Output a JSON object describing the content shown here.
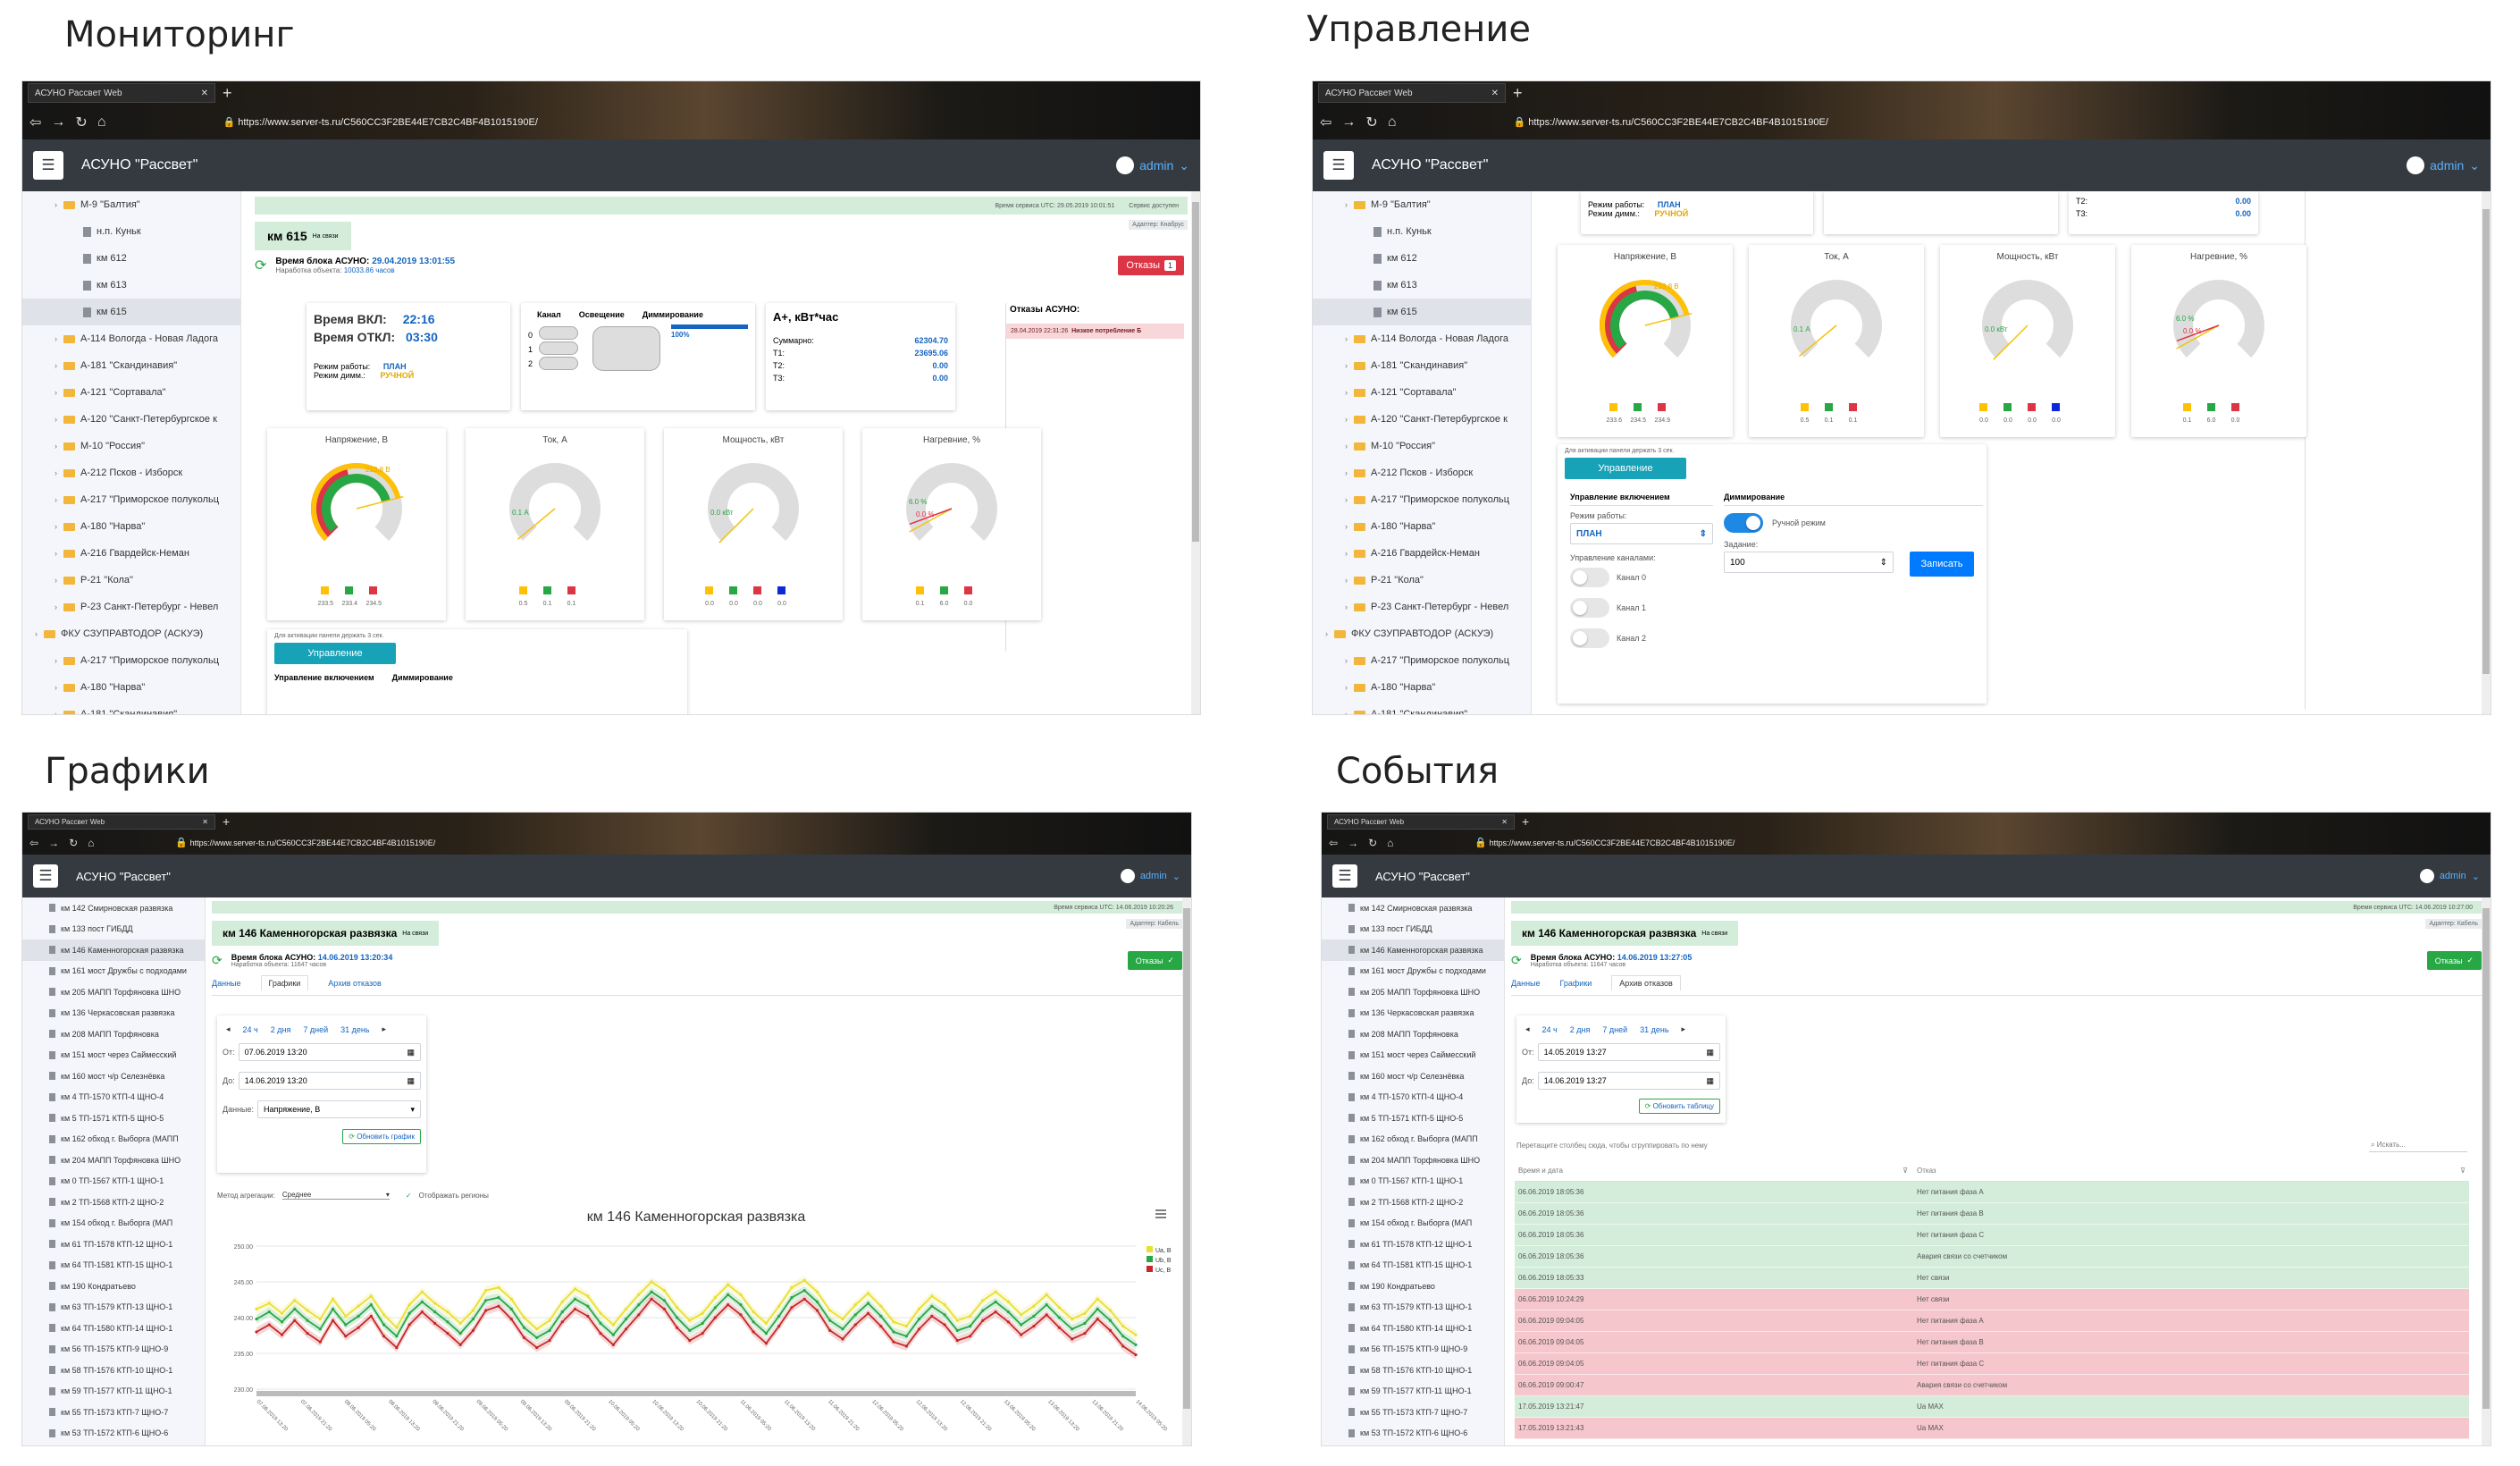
{
  "quadrants": {
    "monitoring": "Мониторинг",
    "control": "Управление",
    "charts": "Графики",
    "events": "События"
  },
  "browser": {
    "tab_title": "АСУНО Рассвет Web",
    "url_main": "https://www.server-ts.ru/C560CC3F2BE44E7CB2C4BF4B1015190E/",
    "url_small": "https://www.server-ts.ru/C560CC3F2BE44E7CB2C4BF4B1015190E/"
  },
  "app": {
    "name": "АСУНО \"Рассвет\"",
    "user": "admin"
  },
  "sidebar_top": [
    {
      "label": "М-9 \"Балтия\"",
      "type": "folder",
      "indent": 1
    },
    {
      "label": "н.п. Куньк",
      "type": "doc",
      "indent": 2
    },
    {
      "label": "км 612",
      "type": "doc",
      "indent": 2
    },
    {
      "label": "км 613",
      "type": "doc",
      "indent": 2
    },
    {
      "label": "км 615",
      "type": "doc",
      "indent": 2,
      "selected": true
    },
    {
      "label": "А-114 Вологда - Новая Ладога",
      "type": "folder",
      "indent": 1
    },
    {
      "label": "А-181 \"Скандинавия\"",
      "type": "folder",
      "indent": 1
    },
    {
      "label": "А-121 \"Сортавала\"",
      "type": "folder",
      "indent": 1
    },
    {
      "label": "А-120 \"Санкт-Петербургское к",
      "type": "folder",
      "indent": 1
    },
    {
      "label": "М-10 \"Россия\"",
      "type": "folder",
      "indent": 1
    },
    {
      "label": "А-212 Псков - Изборск",
      "type": "folder",
      "indent": 1
    },
    {
      "label": "А-217 \"Приморское полукольц",
      "type": "folder",
      "indent": 1
    },
    {
      "label": "А-180 \"Нарва\"",
      "type": "folder",
      "indent": 1
    },
    {
      "label": "А-216 Гвардейск-Неман",
      "type": "folder",
      "indent": 1
    },
    {
      "label": "Р-21 \"Кола\"",
      "type": "folder",
      "indent": 1
    },
    {
      "label": "Р-23 Санкт-Петербург - Невел",
      "type": "folder",
      "indent": 1
    },
    {
      "label": "ФКУ СЗУПРАВТОДОР (АСКУЭ)",
      "type": "folder",
      "indent": 0
    },
    {
      "label": "А-217 \"Приморское полукольц",
      "type": "folder",
      "indent": 1
    },
    {
      "label": "А-180 \"Нарва\"",
      "type": "folder",
      "indent": 1
    },
    {
      "label": "А-181 \"Скандинавия\"",
      "type": "folder",
      "indent": 1
    }
  ],
  "sidebar_bottom": [
    "км 142 Смирновская развязка",
    "км 133 пост ГИБДД",
    "км 146 Каменногорская развязка",
    "км 161 мост Дружбы с подходами",
    "км 205 МАПП Торфяновка ШНО",
    "км 136 Черкасовская развязка",
    "км 208 МАПП Торфяновка",
    "км 151 мост через Саймесский",
    "км 160 мост ч/р Селезнёвка",
    "км 4 ТП-1570 КТП-4 ЩНО-4",
    "км 5 ТП-1571 КТП-5 ЩНО-5",
    "км 162 обход г. Выборга (МАПП",
    "км 204 МАПП Торфяновка ШНО",
    "км 0 ТП-1567 КТП-1 ЩНО-1",
    "км 2 ТП-1568 КТП-2 ЩНО-2",
    "км 154 обход г. Выборга (МАП",
    "км 61 ТП-1578 КТП-12 ЩНО-1",
    "км 64 ТП-1581 КТП-15 ЩНО-1",
    "км 190 Кондратьево",
    "км 63 ТП-1579 КТП-13 ЩНО-1",
    "км 64 ТП-1580 КТП-14 ЩНО-1",
    "км 56 ТП-1575 КТП-9 ЩНО-9",
    "км 58 ТП-1576 КТП-10 ЩНО-1",
    "км 59 ТП-1577 КТП-11 ЩНО-1",
    "км 55 ТП-1573 КТП-7 ЩНО-7",
    "км 53 ТП-1572 КТП-6 ЩНО-6"
  ],
  "monitoring": {
    "strip_left": "Время сервиса UTC: 29.05.2019 10:01:51",
    "strip_right": "Сервис доступен",
    "adapter": "Адаптер: Кнабрус",
    "object": "км 615",
    "object_sub": "На связи",
    "block_time_label": "Время блока АСУНО:",
    "block_time": "29.04.2019 13:01:55",
    "runtime_label": "Наработка объекта:",
    "runtime": "10033.86 часов",
    "faults_btn": "Отказы",
    "faults_count": "1",
    "on_label": "Время ВКЛ:",
    "on_time": "22:16",
    "off_label": "Время ОТКЛ:",
    "off_time": "03:30",
    "mode_label": "Режим работы:",
    "mode_value": "ПЛАН",
    "dim_label": "Режим димм.:",
    "dim_value": "РУЧНОЙ",
    "channel_hdr": "Канал",
    "light_hdr": "Освещение",
    "dimming_hdr": "Диммирование",
    "dimming_value": "100%",
    "channels": [
      "0",
      "1",
      "2"
    ],
    "energy_title": "A+, кВт*час",
    "energy": [
      {
        "label": "Суммарно:",
        "value": "62304.70"
      },
      {
        "label": "T1:",
        "value": "23695.06"
      },
      {
        "label": "T2:",
        "value": "0.00"
      },
      {
        "label": "T3:",
        "value": "0.00"
      }
    ],
    "faults_title": "Отказы АСУНО:",
    "fault_entry_time": "28.04.2019 22:31:26",
    "fault_entry_text": "Низкое потребление Б",
    "gauges": [
      {
        "title": "Напряжение, В",
        "readout": "233.8 В",
        "level": 0.78,
        "vals": [
          "233.5",
          "233.4",
          "234.5"
        ],
        "dots": [
          "#ffc107",
          "#28a745",
          "#dc3545"
        ]
      },
      {
        "title": "Ток, А",
        "readout": "0.1 А",
        "level": 0.02,
        "vals": [
          "0.5",
          "0.1",
          "0.1"
        ],
        "dots": [
          "#ffc107",
          "#28a745",
          "#dc3545"
        ]
      },
      {
        "title": "Мощность, кВт",
        "readout": "0.0 кВт",
        "level": 0.0,
        "vals": [
          "0.0",
          "0.0",
          "0.0",
          "0.0"
        ],
        "dots": [
          "#ffc107",
          "#28a745",
          "#dc3545",
          "#0d27d9"
        ]
      },
      {
        "title": "Нагревние, %",
        "readout": "6.0 %",
        "level": 0.06,
        "readout2": "0.0 %",
        "vals": [
          "0.1",
          "6.0",
          "0.0"
        ],
        "dots": [
          "#ffc107",
          "#28a745",
          "#dc3545"
        ]
      }
    ],
    "hold_hint": "Для активации панели держать 3 сек.",
    "control_btn": "Управление",
    "power_ctrl": "Управление включением",
    "dimming": "Диммирование",
    "mode_label2": "Режим работы:"
  },
  "control": {
    "mode_label": "Режим работы:",
    "mode_value": "ПЛАН",
    "dim_label": "Режим димм.:",
    "dim_value": "РУЧНОЙ",
    "t2": "T2:",
    "t2v": "0.00",
    "t3": "T3:",
    "t3v": "0.00",
    "gauges": [
      {
        "title": "Напряжение, В",
        "readout": "233.8 В",
        "level": 0.78,
        "vals": [
          "233.6",
          "234.5",
          "234.9"
        ],
        "dots": [
          "#ffc107",
          "#28a745",
          "#dc3545"
        ]
      },
      {
        "title": "Ток, А",
        "readout": "0.1 А",
        "level": 0.02,
        "vals": [
          "0.5",
          "0.1",
          "0.1"
        ],
        "dots": [
          "#ffc107",
          "#28a745",
          "#dc3545"
        ]
      },
      {
        "title": "Мощность, кВт",
        "readout": "0.0 кВт",
        "level": 0.0,
        "vals": [
          "0.0",
          "0.0",
          "0.0",
          "0.0"
        ],
        "dots": [
          "#ffc107",
          "#28a745",
          "#dc3545",
          "#0d27d9"
        ]
      },
      {
        "title": "Нагревние, %",
        "readout": "6.0 %",
        "level": 0.06,
        "readout2": "0.0 %",
        "vals": [
          "0.1",
          "6.0",
          "0.0"
        ],
        "dots": [
          "#ffc107",
          "#28a745",
          "#dc3545"
        ]
      }
    ],
    "hold_hint": "Для активации панели держать 3 сек.",
    "control_btn": "Управление",
    "power_ctrl": "Управление включением",
    "mode_select": "ПЛАН",
    "channels_label": "Управление каналами:",
    "channels": [
      "Канал 0",
      "Канал 1",
      "Канал 2"
    ],
    "dimming": "Диммирование",
    "manual": "Ручной режим",
    "task_label": "Задание:",
    "task_value": "100",
    "write_btn": "Записать"
  },
  "charts": {
    "strip_left": "Время сервиса UTC: 14.06.2019 10:20:26",
    "strip_right": "Сервис доступен",
    "adapter": "Адаптер: Кабель",
    "object": "км 146 Каменногорская развязка",
    "object_sub": "На связи",
    "block_time_label": "Время блока АСУНО:",
    "block_time": "14.06.2019 13:20:34",
    "runtime_label": "Наработка объекта:",
    "runtime": "11647 часов",
    "faults_btn": "Отказы",
    "tabs": [
      "Данные",
      "Графики",
      "Архив отказов"
    ],
    "ranges": [
      "24 ч",
      "2 дня",
      "7 дней",
      "31 день"
    ],
    "from_label": "От:",
    "from": "07.06.2019 13:20",
    "to_label": "До:",
    "to": "14.06.2019 13:20",
    "data_label": "Данные:",
    "data_value": "Напряжение, В",
    "refresh_btn": "Обновить график",
    "agg_label": "Метод агрегации:",
    "agg_value": "Среднее",
    "regions": "Отображать регионы"
  },
  "chart_data": {
    "type": "line",
    "title": "км 146 Каменногорская развязка",
    "ylim": [
      230,
      250
    ],
    "yticks": [
      "250.00",
      "245.00",
      "240.00",
      "235.00",
      "230.00"
    ],
    "grid": true,
    "legend": "right",
    "series": [
      {
        "name": "Ua, В",
        "color": "#e8e030",
        "values": [
          241.2,
          242.0,
          240.6,
          242.4,
          241.0,
          239.8,
          242.6,
          240.2,
          241.6,
          243.0,
          240.4,
          238.6,
          241.8,
          243.6,
          242.0,
          240.8,
          239.2,
          241.0,
          243.8,
          244.2,
          242.6,
          240.0,
          238.4,
          239.6,
          242.2,
          244.0,
          243.0,
          240.6,
          239.0,
          241.2,
          243.2,
          245.0,
          243.8,
          241.4,
          239.6,
          240.6,
          242.8,
          244.6,
          243.2,
          240.8,
          239.2,
          241.6,
          244.2,
          245.2,
          243.6,
          241.0,
          239.8,
          241.8,
          243.4,
          241.6,
          239.4,
          238.8,
          241.2,
          243.0,
          241.8,
          239.6,
          240.2,
          242.4,
          243.6,
          242.2,
          240.4,
          241.6,
          243.2,
          241.4,
          239.8,
          240.6,
          242.6,
          241.0,
          238.8,
          237.6
        ]
      },
      {
        "name": "Ub, В",
        "color": "#28a745",
        "values": [
          239.8,
          240.8,
          239.4,
          241.2,
          239.6,
          238.4,
          241.2,
          239.0,
          240.2,
          241.8,
          239.0,
          237.4,
          240.6,
          242.2,
          240.8,
          239.4,
          237.8,
          239.8,
          242.4,
          242.8,
          241.2,
          238.6,
          237.2,
          238.2,
          240.8,
          242.6,
          241.6,
          239.2,
          237.6,
          239.8,
          241.8,
          243.6,
          242.4,
          240.0,
          238.2,
          239.2,
          241.4,
          243.2,
          241.8,
          239.4,
          237.8,
          240.2,
          242.8,
          243.8,
          242.2,
          239.6,
          238.4,
          240.4,
          242.0,
          240.2,
          238.0,
          237.4,
          239.8,
          241.6,
          240.4,
          238.2,
          238.8,
          241.0,
          242.2,
          240.8,
          239.0,
          240.2,
          241.8,
          240.0,
          238.4,
          239.2,
          241.2,
          239.6,
          237.4,
          236.2
        ]
      },
      {
        "name": "Uc, В",
        "color": "#c62828",
        "values": [
          238.0,
          239.0,
          237.6,
          239.6,
          237.8,
          236.6,
          239.6,
          237.4,
          238.6,
          240.2,
          237.4,
          235.8,
          239.0,
          240.8,
          239.2,
          237.8,
          236.2,
          238.2,
          241.0,
          241.6,
          239.8,
          237.2,
          235.8,
          236.8,
          239.4,
          241.2,
          240.2,
          237.8,
          236.2,
          238.4,
          240.4,
          242.6,
          241.2,
          238.6,
          236.8,
          237.8,
          240.0,
          241.8,
          240.4,
          238.0,
          236.4,
          238.8,
          241.4,
          242.6,
          241.0,
          238.2,
          237.0,
          239.0,
          240.6,
          238.8,
          236.6,
          236.0,
          238.4,
          240.2,
          239.0,
          236.8,
          237.4,
          239.6,
          240.8,
          239.4,
          237.6,
          238.8,
          240.4,
          238.6,
          237.0,
          237.8,
          239.8,
          238.2,
          236.0,
          234.8
        ]
      }
    ],
    "x_ticks": [
      "07.06.2019 13:20",
      "07.06.2019 21:20",
      "08.06.2019 05:20",
      "08.06.2019 13:20",
      "08.06.2019 21:20",
      "09.06.2019 05:20",
      "09.06.2019 13:20",
      "09.06.2019 21:20",
      "10.06.2019 05:20",
      "10.06.2019 13:20",
      "10.06.2019 21:20",
      "11.06.2019 05:20",
      "11.06.2019 13:20",
      "11.06.2019 21:20",
      "12.06.2019 05:20",
      "12.06.2019 13:20",
      "12.06.2019 21:20",
      "13.06.2019 05:20",
      "13.06.2019 13:20",
      "13.06.2019 21:20",
      "14.06.2019 05:20"
    ]
  },
  "events": {
    "strip_left": "Время сервиса UTC: 14.06.2019 10:27:00",
    "strip_right": "Сервис доступен",
    "adapter": "Адаптер: Кабель",
    "object": "км 146 Каменногорская развязка",
    "object_sub": "На связи",
    "block_time_label": "Время блока АСУНО:",
    "block_time": "14.06.2019 13:27:05",
    "runtime_label": "Наработка объекта:",
    "runtime": "11647 часов",
    "faults_btn": "Отказы",
    "tabs": [
      "Данные",
      "Графики",
      "Архив отказов"
    ],
    "ranges": [
      "24 ч",
      "2 дня",
      "7 дней",
      "31 день"
    ],
    "from_label": "От:",
    "from": "14.05.2019 13:27",
    "to_label": "До:",
    "to": "14.06.2019 13:27",
    "refresh_btn": "Обновить таблицу",
    "group_hint": "Перетащите столбец сюда, чтобы сгруппировать по нему",
    "search": "Искать...",
    "col_time": "Время и дата",
    "col_fault": "Отказ",
    "rows": [
      {
        "time": "06.06.2019 18:05:36",
        "text": "Нет питания фаза A",
        "ok": true
      },
      {
        "time": "06.06.2019 18:05:36",
        "text": "Нет питания фаза B",
        "ok": true
      },
      {
        "time": "06.06.2019 18:05:36",
        "text": "Нет питания фаза C",
        "ok": true
      },
      {
        "time": "06.06.2019 18:05:36",
        "text": "Авария связи со счетчиком",
        "ok": true
      },
      {
        "time": "06.06.2019 18:05:33",
        "text": "Нет связи",
        "ok": true
      },
      {
        "time": "06.06.2019 10:24:29",
        "text": "Нет связи",
        "ok": false
      },
      {
        "time": "06.06.2019 09:04:05",
        "text": "Нет питания фаза A",
        "ok": false
      },
      {
        "time": "06.06.2019 09:04:05",
        "text": "Нет питания фаза B",
        "ok": false
      },
      {
        "time": "06.06.2019 09:04:05",
        "text": "Нет питания фаза C",
        "ok": false
      },
      {
        "time": "06.06.2019 09:00:47",
        "text": "Авария связи со счетчиком",
        "ok": false
      },
      {
        "time": "17.05.2019 13:21:47",
        "text": "Ua MAX",
        "ok": true
      },
      {
        "time": "17.05.2019 13:21:43",
        "text": "Ua MAX",
        "ok": false
      }
    ]
  },
  "colors": {
    "header": "#343a40",
    "accent": "#007bff",
    "ok_row": "#d4edda",
    "err_row": "#f5c6cb",
    "teal": "#17a2b8"
  }
}
